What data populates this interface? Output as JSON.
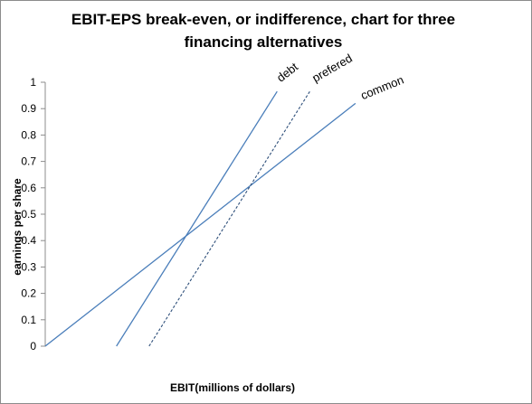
{
  "chart_data": {
    "type": "line",
    "title": "EBIT-EPS break-even,  or indifference, chart for three financing alternatives",
    "xlabel": "EBIT(millions of dollars)",
    "ylabel": "earnings per share",
    "ylim": [
      0,
      1
    ],
    "yticks": [
      "0",
      "0.1",
      "0.2",
      "0.3",
      "0.4",
      "0.5",
      "0.6",
      "0.7",
      "0.8",
      "0.9",
      "1"
    ],
    "xlim": [
      0,
      10
    ],
    "grid": false,
    "legend": "none",
    "series": [
      {
        "name": "common",
        "style": "solid",
        "color": "#4a7eba",
        "x": [
          0,
          9.5
        ],
        "y": [
          0,
          0.92
        ]
      },
      {
        "name": "debt",
        "style": "solid",
        "color": "#4a7eba",
        "x": [
          2.18,
          7.1
        ],
        "y": [
          0,
          0.965
        ]
      },
      {
        "name": "prefered",
        "style": "dashed",
        "color": "#2e4f7a",
        "x": [
          3.18,
          8.1
        ],
        "y": [
          0,
          0.965
        ]
      }
    ]
  }
}
